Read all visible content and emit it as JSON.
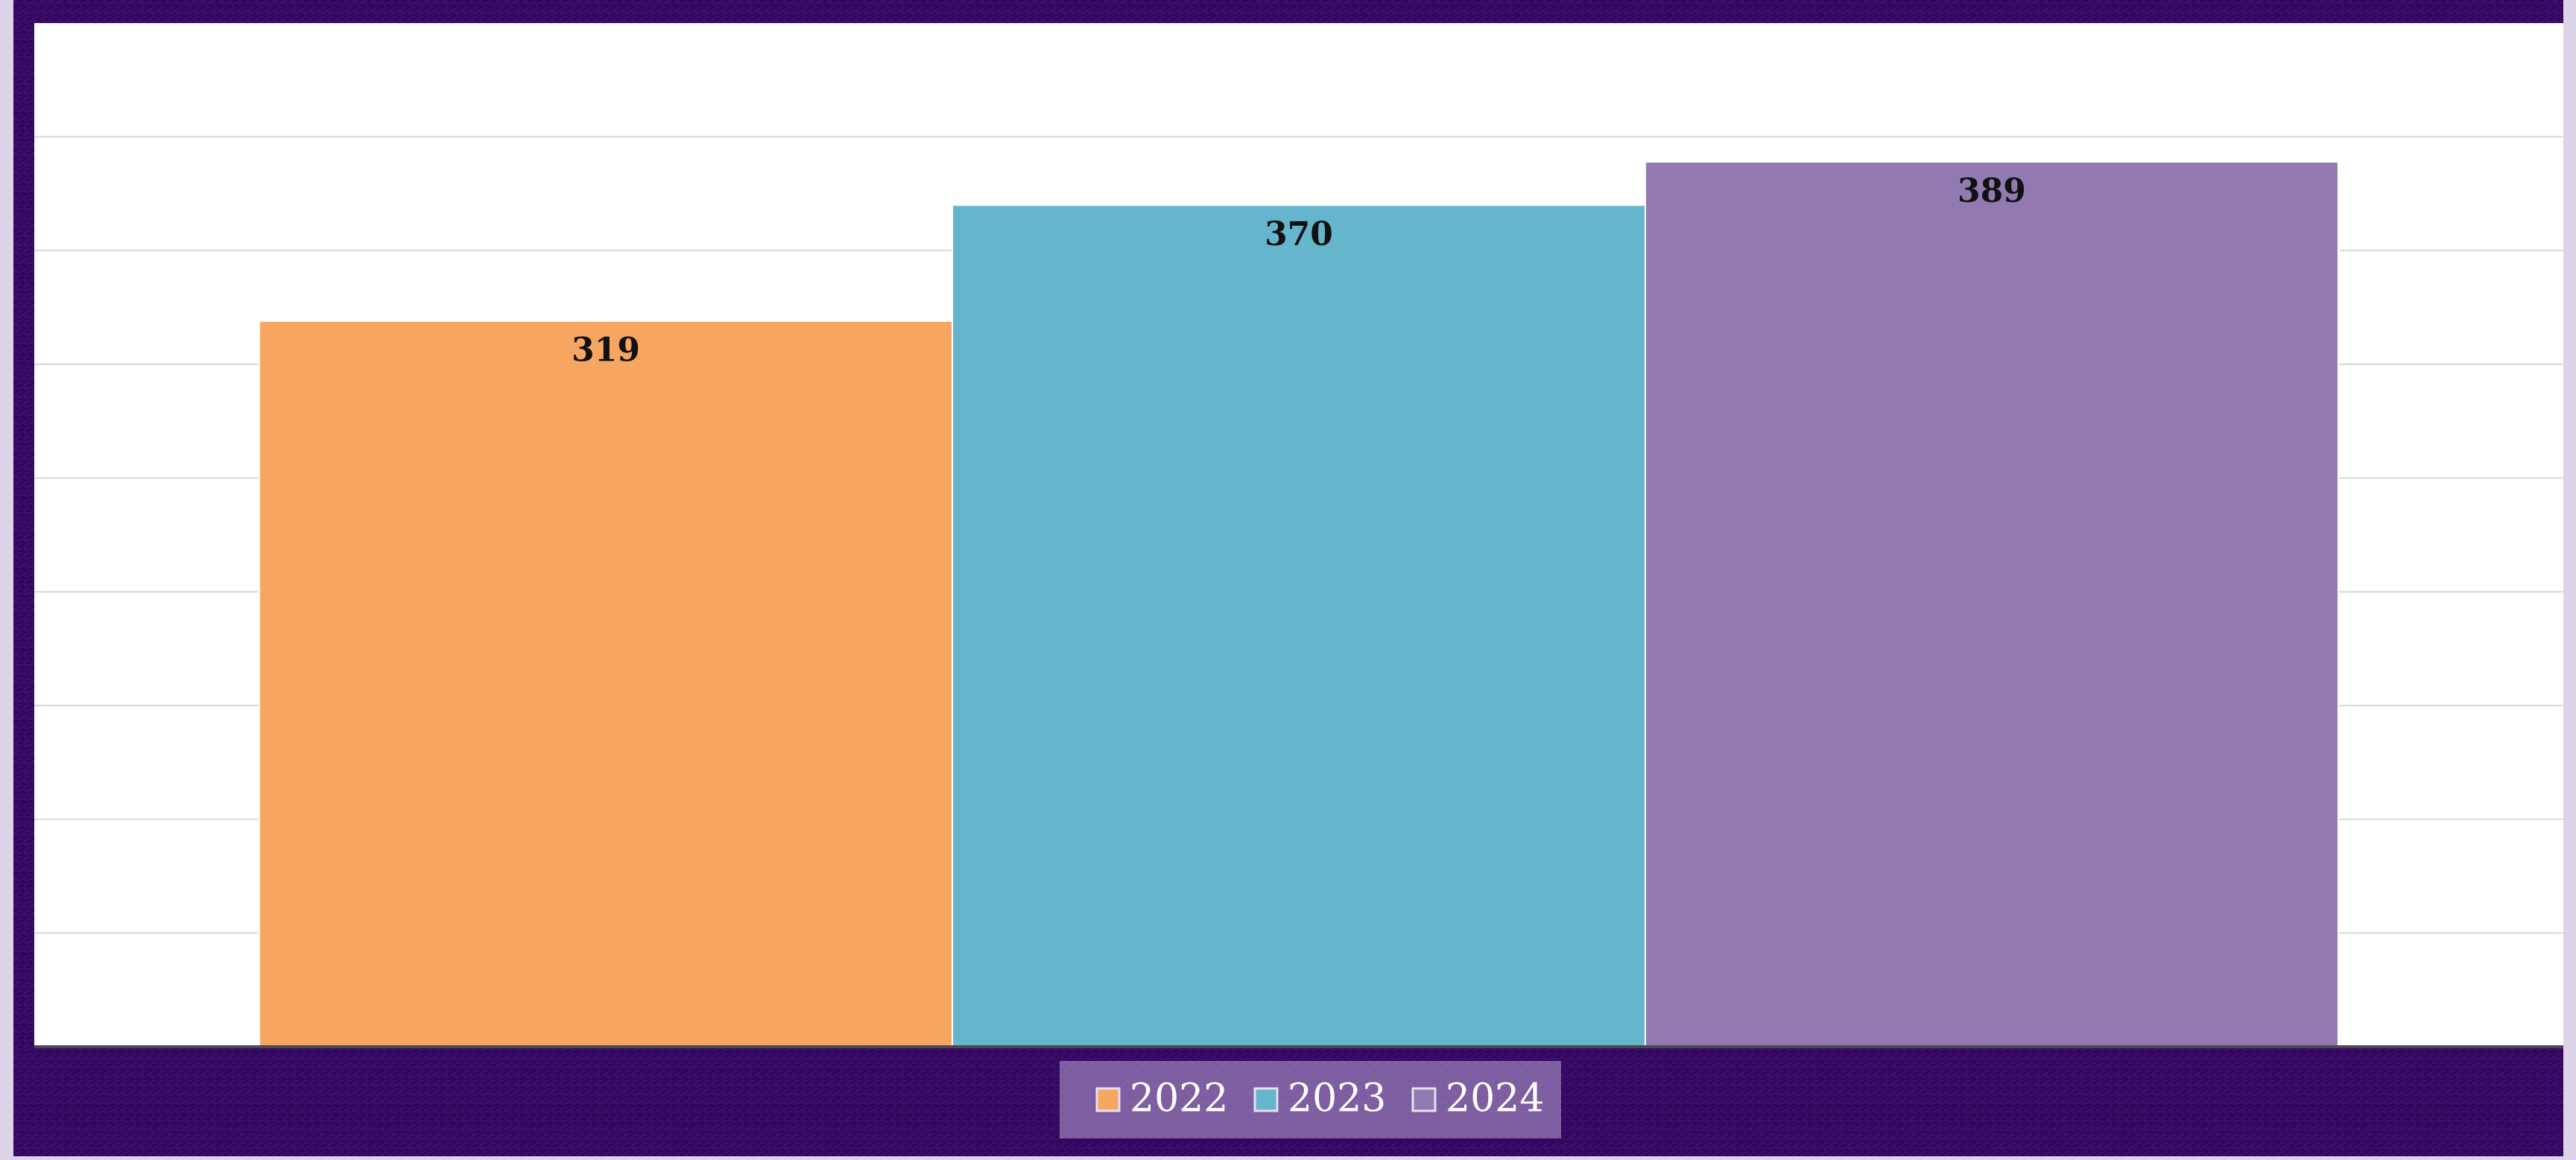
{
  "chart_data": {
    "type": "bar",
    "categories": [
      null
    ],
    "series": [
      {
        "name": "2022",
        "color": "#f6a660",
        "values": [
          319
        ]
      },
      {
        "name": "2023",
        "color": "#65b6cc",
        "values": [
          370
        ]
      },
      {
        "name": "2024",
        "color": "#927ab0",
        "values": [
          389
        ]
      }
    ],
    "ylim": [
      0,
      450
    ],
    "yticks": [
      0,
      50,
      100,
      150,
      200,
      250,
      300,
      350,
      400
    ],
    "grid": true,
    "legend": "bottom"
  }
}
